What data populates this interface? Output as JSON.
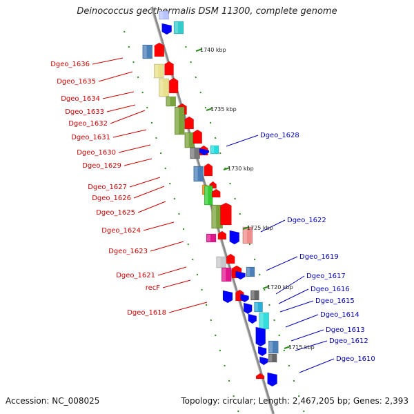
{
  "title": "Deinococcus geothermalis DSM 11300, complete genome",
  "footer": {
    "accession": "Accession: NC_008025",
    "summary": "Topology: circular; Length: 2,467,205 bp; Genes: 2,393"
  },
  "colors": {
    "backbone": "#8a8a8a",
    "ruler": "#2a8a1a",
    "forward_label": "#cc0000",
    "reverse_label": "#0000bb",
    "forward_arrow": "#ff0000",
    "reverse_arrow": "#0000ff"
  },
  "scale_labels": [
    "1740 kbp",
    "1735 kbp",
    "1730 kbp",
    "1725 kbp",
    "1720 kbp",
    "1715 kbp"
  ],
  "forward_genes": [
    "Dgeo_1636",
    "Dgeo_1635",
    "Dgeo_1634",
    "Dgeo_1633",
    "Dgeo_1632",
    "Dgeo_1631",
    "Dgeo_1630",
    "Dgeo_1629",
    "Dgeo_1627",
    "Dgeo_1626",
    "Dgeo_1625",
    "Dgeo_1624",
    "Dgeo_1623",
    "Dgeo_1621",
    "recF",
    "Dgeo_1618"
  ],
  "reverse_genes": [
    "Dgeo_1628",
    "Dgeo_1622",
    "Dgeo_1619",
    "Dgeo_1617",
    "Dgeo_1616",
    "Dgeo_1615",
    "Dgeo_1614",
    "Dgeo_1613",
    "Dgeo_1612",
    "Dgeo_1610"
  ]
}
